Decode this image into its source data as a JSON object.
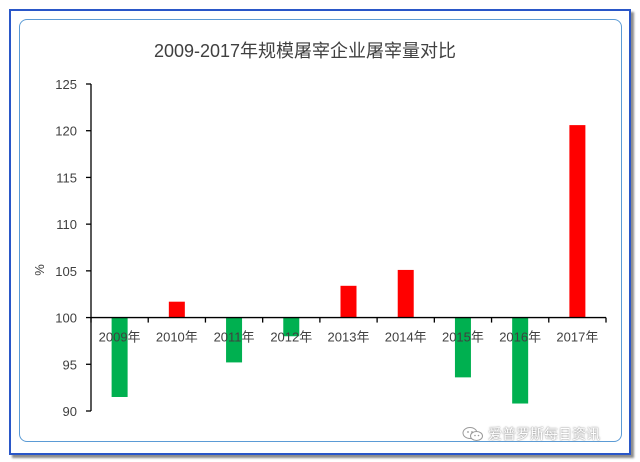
{
  "chart_data": {
    "type": "bar",
    "title": "2009-2017年规模屠宰企业屠宰量对比",
    "ylabel": "%",
    "xlabel": "",
    "ylim": [
      90,
      125
    ],
    "yticks": [
      90,
      95,
      100,
      105,
      110,
      115,
      120,
      125
    ],
    "baseline": 100,
    "categories": [
      "2009年",
      "2010年",
      "2011年",
      "2012年",
      "2013年",
      "2014年",
      "2015年",
      "2016年",
      "2017年"
    ],
    "values": [
      91.5,
      101.7,
      95.2,
      98.0,
      103.4,
      105.1,
      93.6,
      90.8,
      120.6
    ],
    "colors": {
      "increase": "#ff0000",
      "decrease": "#00b050"
    },
    "grid": false,
    "legend": "none"
  },
  "watermark": {
    "text": "爱普罗斯每日资讯",
    "icon": "wechat-icon"
  }
}
